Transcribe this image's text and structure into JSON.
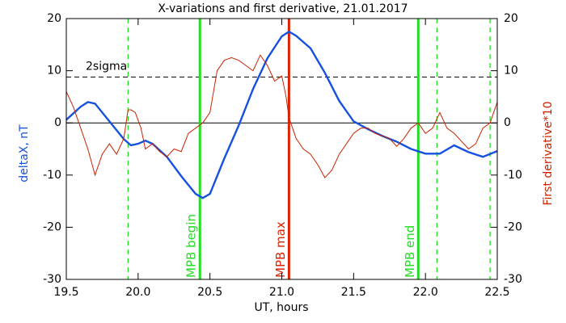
{
  "chart_data": {
    "type": "line",
    "title": "X-variations and first derivative, 21.01.2017",
    "xlabel": "UT, hours",
    "ylabel": "deltaX, nT",
    "y2label": "First derivative*10",
    "xlim": [
      19.5,
      22.5
    ],
    "xticks": [
      19.5,
      {
        "value": 20,
        "label": "20.0"
      },
      20.5,
      {
        "value": 21,
        "label": "21.0"
      },
      21.5,
      {
        "value": 22,
        "label": "22.0"
      },
      22.5
    ],
    "ylim": [
      -30,
      20
    ],
    "yticks": [
      -30,
      -20,
      -10,
      0,
      10,
      20
    ],
    "y2lim": [
      -30,
      20
    ],
    "y2ticks": [
      -30,
      -20,
      -10,
      0,
      10,
      20
    ],
    "series": [
      {
        "name": "deltaX, nT",
        "color": "#1550e0",
        "axis": "y",
        "x": [
          19.5,
          19.6,
          19.65,
          19.7,
          19.8,
          19.9,
          19.95,
          20.0,
          20.05,
          20.1,
          20.2,
          20.3,
          20.4,
          20.45,
          20.5,
          20.6,
          20.7,
          20.8,
          20.9,
          21.0,
          21.05,
          21.1,
          21.2,
          21.3,
          21.4,
          21.5,
          21.6,
          21.7,
          21.8,
          21.9,
          22.0,
          22.1,
          22.2,
          22.3,
          22.4,
          22.5
        ],
        "values": [
          0.6,
          3.1,
          4,
          3.7,
          0.3,
          -3.1,
          -4.3,
          -4,
          -3.4,
          -4,
          -6.5,
          -10.2,
          -13.6,
          -14.4,
          -13.6,
          -6.8,
          -0.5,
          6.5,
          12.4,
          16.6,
          17.5,
          16.7,
          14.3,
          9.6,
          4.2,
          0.3,
          -1.2,
          -2.5,
          -3.6,
          -5,
          -5.9,
          -5.9,
          -4.3,
          -5.6,
          -6.5,
          -5.4
        ]
      },
      {
        "name": "First derivative*10",
        "color": "#cc2200",
        "axis": "y2",
        "x": [
          19.5,
          19.55,
          19.6,
          19.65,
          19.7,
          19.75,
          19.8,
          19.85,
          19.9,
          19.93,
          19.95,
          19.98,
          20.02,
          20.05,
          20.1,
          20.15,
          20.2,
          20.25,
          20.3,
          20.35,
          20.4,
          20.45,
          20.5,
          20.55,
          20.6,
          20.65,
          20.7,
          20.75,
          20.8,
          20.85,
          20.9,
          20.95,
          21.0,
          21.03,
          21.05,
          21.1,
          21.15,
          21.2,
          21.25,
          21.3,
          21.35,
          21.4,
          21.45,
          21.5,
          21.55,
          21.6,
          21.65,
          21.7,
          21.75,
          21.8,
          21.85,
          21.9,
          21.95,
          22.0,
          22.05,
          22.1,
          22.15,
          22.2,
          22.25,
          22.3,
          22.35,
          22.4,
          22.45,
          22.5
        ],
        "values": [
          6,
          3,
          -1,
          -5,
          -10,
          -6,
          -4,
          -6,
          -3,
          2.5,
          2.5,
          2,
          -1,
          -5,
          -4,
          -5.5,
          -6.5,
          -5,
          -5.5,
          -2,
          -1,
          0,
          2,
          10,
          12,
          12.5,
          12,
          11,
          10,
          13,
          11,
          8,
          9,
          5,
          1,
          -3,
          -5,
          -6,
          -8,
          -10.5,
          -9,
          -6,
          -4,
          -2,
          -1,
          -1,
          -2,
          -2.5,
          -3,
          -4.5,
          -3,
          -1,
          0,
          -2,
          -1,
          2,
          -1,
          -2,
          -3.5,
          -5,
          -4,
          -1,
          0,
          4
        ]
      }
    ],
    "hlines": [
      {
        "y": 0,
        "color": "#000000",
        "style": "solid"
      },
      {
        "y": 8.8,
        "color": "#000000",
        "style": "dashed",
        "label": "2sigma"
      }
    ],
    "vlines": [
      {
        "x": 19.93,
        "color": "#22dd22",
        "style": "dashed"
      },
      {
        "x": 20.43,
        "color": "#22dd22",
        "style": "solid",
        "label": "MPB begin"
      },
      {
        "x": 21.05,
        "color": "#dd2200",
        "style": "solid",
        "label": "MPB max"
      },
      {
        "x": 21.95,
        "color": "#22dd22",
        "style": "solid",
        "label": "MPB end"
      },
      {
        "x": 22.08,
        "color": "#22dd22",
        "style": "dashed"
      },
      {
        "x": 22.45,
        "color": "#22dd22",
        "style": "dashed"
      }
    ]
  }
}
